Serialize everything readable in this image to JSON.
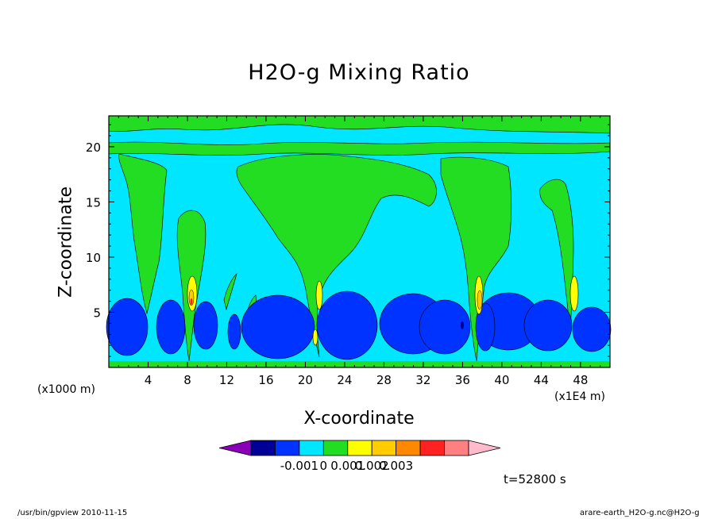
{
  "chart_data": {
    "type": "heatmap",
    "title": "H2O-g Mixing Ratio",
    "xlabel": "X-coordinate",
    "ylabel": "Z-coordinate",
    "x_unit": "(x1E4 m)",
    "y_unit": "(x1000 m)",
    "x_ticks": [
      "4",
      "8",
      "12",
      "16",
      "20",
      "24",
      "28",
      "32",
      "36",
      "40",
      "44",
      "48"
    ],
    "y_ticks": [
      "5",
      "10",
      "15",
      "20"
    ],
    "xlim": [
      0,
      51
    ],
    "ylim": [
      0,
      22.8
    ],
    "colorbar": {
      "labels": [
        "-0.001",
        "0",
        "0.001",
        "0.002",
        "0.003"
      ],
      "colors": [
        "#8a00b8",
        "#000099",
        "#0033ff",
        "#00e6ff",
        "#22dd22",
        "#ffff00",
        "#ffcc00",
        "#ff8800",
        "#ff2222",
        "#ff8080",
        "#ffbbcc"
      ]
    },
    "time_label": "t=52800 s"
  },
  "footer": {
    "left": "/usr/bin/gpview  2010-11-15",
    "right": "arare-earth_H2O-g.nc@H2O-g"
  }
}
